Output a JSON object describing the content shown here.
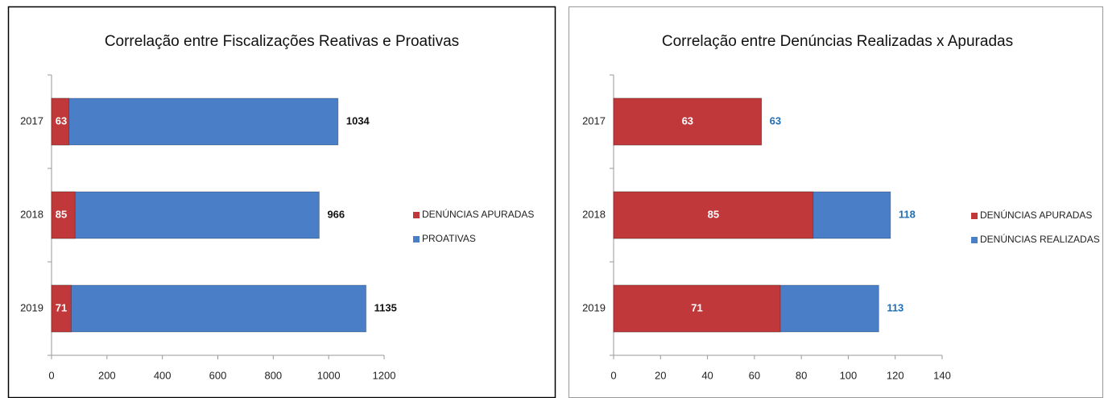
{
  "chart_data": [
    {
      "type": "bar",
      "orientation": "horizontal",
      "overlap": true,
      "title": "Correlação entre Fiscalizações Reativas e Proativas",
      "categories": [
        "2017",
        "2018",
        "2019"
      ],
      "series": [
        {
          "name": "DENÚNCIAS APURADAS",
          "color": "#c0383a",
          "values": [
            63,
            85,
            71
          ]
        },
        {
          "name": "PROATIVAS",
          "color": "#4a7fc8",
          "values": [
            1034,
            966,
            1135
          ]
        }
      ],
      "xlim": [
        0,
        1200
      ],
      "xticks": [
        0,
        200,
        400,
        600,
        800,
        1000,
        1200
      ],
      "legend": "right"
    },
    {
      "type": "bar",
      "orientation": "horizontal",
      "overlap": true,
      "title": "Correlação entre Denúncias Realizadas x Apuradas",
      "categories": [
        "2017",
        "2018",
        "2019"
      ],
      "series": [
        {
          "name": "DENÚNCIAS APURADAS",
          "color": "#c0383a",
          "values": [
            63,
            85,
            71
          ]
        },
        {
          "name": "DENÚNCIAS REALIZADAS",
          "color": "#4a7fc8",
          "values": [
            63,
            118,
            113
          ]
        }
      ],
      "xlim": [
        0,
        140
      ],
      "xticks": [
        0,
        20,
        40,
        60,
        80,
        100,
        120,
        140
      ],
      "legend": "right"
    }
  ]
}
